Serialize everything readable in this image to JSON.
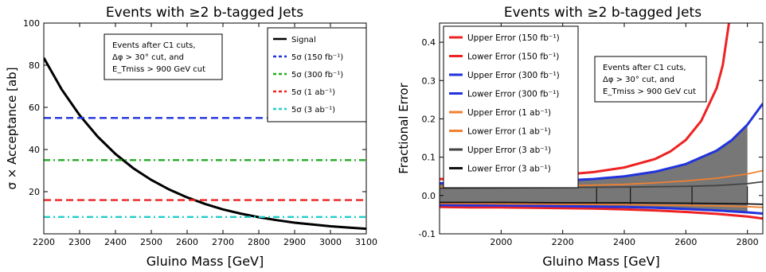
{
  "chart_data": [
    {
      "type": "line",
      "title": "Events with ≥2 b-tagged Jets",
      "xlabel": "Gluino Mass [GeV]",
      "ylabel": "σ × Acceptance [ab]",
      "xlim": [
        2200,
        3100
      ],
      "ylim": [
        0,
        100
      ],
      "x_ticks": [
        2200,
        2300,
        2400,
        2500,
        2600,
        2700,
        2800,
        2900,
        3000,
        3100
      ],
      "y_ticks": [
        20,
        40,
        60,
        80,
        100
      ],
      "grid": false,
      "legend_position": "top-right",
      "annotation": [
        "Events after C1 cuts,",
        "Δφ > 30° cut, and",
        "E_Tmiss > 900 GeV cut"
      ],
      "series": [
        {
          "name": "Signal",
          "style": "solid",
          "color": "#000000",
          "x": [
            2200,
            2250,
            2300,
            2350,
            2400,
            2450,
            2500,
            2550,
            2600,
            2650,
            2700,
            2750,
            2800,
            2850,
            2900,
            2950,
            3000,
            3050,
            3100
          ],
          "y": [
            83.5,
            68.5,
            56.3,
            46.2,
            37.9,
            31.1,
            25.6,
            21.0,
            17.3,
            14.2,
            11.6,
            9.6,
            7.9,
            6.5,
            5.3,
            4.4,
            3.6,
            3.0,
            2.4
          ]
        },
        {
          "name": "5σ (150 fb⁻¹)",
          "style": "dashed",
          "color": "#2233dd",
          "x": [
            2200,
            3100
          ],
          "y": [
            55,
            55
          ]
        },
        {
          "name": "5σ (300 fb⁻¹)",
          "style": "dashdot",
          "color": "#22aa22",
          "x": [
            2200,
            3100
          ],
          "y": [
            35,
            35
          ]
        },
        {
          "name": "5σ (1 ab⁻¹)",
          "style": "dashed",
          "color": "#ee2222",
          "x": [
            2200,
            3100
          ],
          "y": [
            16,
            16
          ]
        },
        {
          "name": "5σ (3 ab⁻¹)",
          "style": "dashdot",
          "color": "#22cccc",
          "x": [
            2200,
            3100
          ],
          "y": [
            8,
            8
          ]
        }
      ]
    },
    {
      "type": "line",
      "title": "Events with ≥2 b-tagged Jets",
      "xlabel": "Gluino Mass [GeV]",
      "ylabel": "Fractional Error",
      "xlim": [
        1800,
        2850
      ],
      "ylim": [
        -0.1,
        0.45
      ],
      "x_ticks": [
        2000,
        2200,
        2400,
        2600,
        2800
      ],
      "y_ticks": [
        -0.1,
        0.0,
        0.1,
        0.2,
        0.3,
        0.4
      ],
      "grid": false,
      "legend_position": "top-left",
      "annotation": [
        "Events after C1 cuts,",
        "Δφ > 30° cut, and",
        "E_Tmiss > 900 GeV cut"
      ],
      "band_fill": "#777777",
      "band_ends": [
        2310,
        2420,
        2620,
        2800
      ],
      "series": [
        {
          "name": "Upper Error (150 fb⁻¹)",
          "color": "#ee2222",
          "x": [
            1800,
            1900,
            2000,
            2100,
            2200,
            2300,
            2400,
            2500,
            2550,
            2600,
            2650,
            2700,
            2720,
            2740
          ],
          "y": [
            0.043,
            0.044,
            0.046,
            0.049,
            0.054,
            0.061,
            0.073,
            0.095,
            0.115,
            0.145,
            0.195,
            0.28,
            0.34,
            0.45
          ]
        },
        {
          "name": "Lower Error (150 fb⁻¹)",
          "color": "#ee2222",
          "x": [
            1800,
            1900,
            2000,
            2100,
            2200,
            2300,
            2400,
            2500,
            2600,
            2700,
            2800,
            2850
          ],
          "y": [
            -0.03,
            -0.031,
            -0.031,
            -0.032,
            -0.033,
            -0.034,
            -0.036,
            -0.039,
            -0.043,
            -0.048,
            -0.055,
            -0.06
          ]
        },
        {
          "name": "Upper Error (300 fb⁻¹)",
          "color": "#2233dd",
          "x": [
            1800,
            1900,
            2000,
            2100,
            2200,
            2300,
            2400,
            2500,
            2600,
            2700,
            2750,
            2800,
            2850
          ],
          "y": [
            0.032,
            0.033,
            0.034,
            0.036,
            0.039,
            0.043,
            0.05,
            0.062,
            0.082,
            0.117,
            0.145,
            0.185,
            0.24
          ]
        },
        {
          "name": "Lower Error (300 fb⁻¹)",
          "color": "#2233dd",
          "x": [
            1800,
            1900,
            2000,
            2100,
            2200,
            2300,
            2400,
            2500,
            2600,
            2700,
            2800,
            2850
          ],
          "y": [
            -0.025,
            -0.026,
            -0.026,
            -0.027,
            -0.028,
            -0.029,
            -0.03,
            -0.032,
            -0.035,
            -0.039,
            -0.044,
            -0.047
          ]
        },
        {
          "name": "Upper Error (1 ab⁻¹)",
          "color": "#f08030",
          "x": [
            1800,
            2000,
            2200,
            2400,
            2500,
            2600,
            2700,
            2800,
            2850
          ],
          "y": [
            0.022,
            0.023,
            0.025,
            0.029,
            0.033,
            0.038,
            0.045,
            0.056,
            0.065
          ]
        },
        {
          "name": "Lower Error (1 ab⁻¹)",
          "color": "#f08030",
          "x": [
            1800,
            2000,
            2200,
            2400,
            2600,
            2700,
            2800,
            2850
          ],
          "y": [
            -0.021,
            -0.022,
            -0.023,
            -0.024,
            -0.026,
            -0.027,
            -0.029,
            -0.031
          ]
        },
        {
          "name": "Upper Error (3 ab⁻¹)",
          "color": "#444444",
          "x": [
            1800,
            2000,
            2200,
            2400,
            2600,
            2700,
            2800,
            2850
          ],
          "y": [
            0.019,
            0.02,
            0.021,
            0.022,
            0.024,
            0.026,
            0.031,
            0.036
          ]
        },
        {
          "name": "Lower Error (3 ab⁻¹)",
          "color": "#111111",
          "x": [
            1800,
            2000,
            2200,
            2400,
            2600,
            2700,
            2800,
            2850
          ],
          "y": [
            -0.018,
            -0.018,
            -0.019,
            -0.019,
            -0.02,
            -0.021,
            -0.022,
            -0.023
          ]
        }
      ]
    }
  ]
}
